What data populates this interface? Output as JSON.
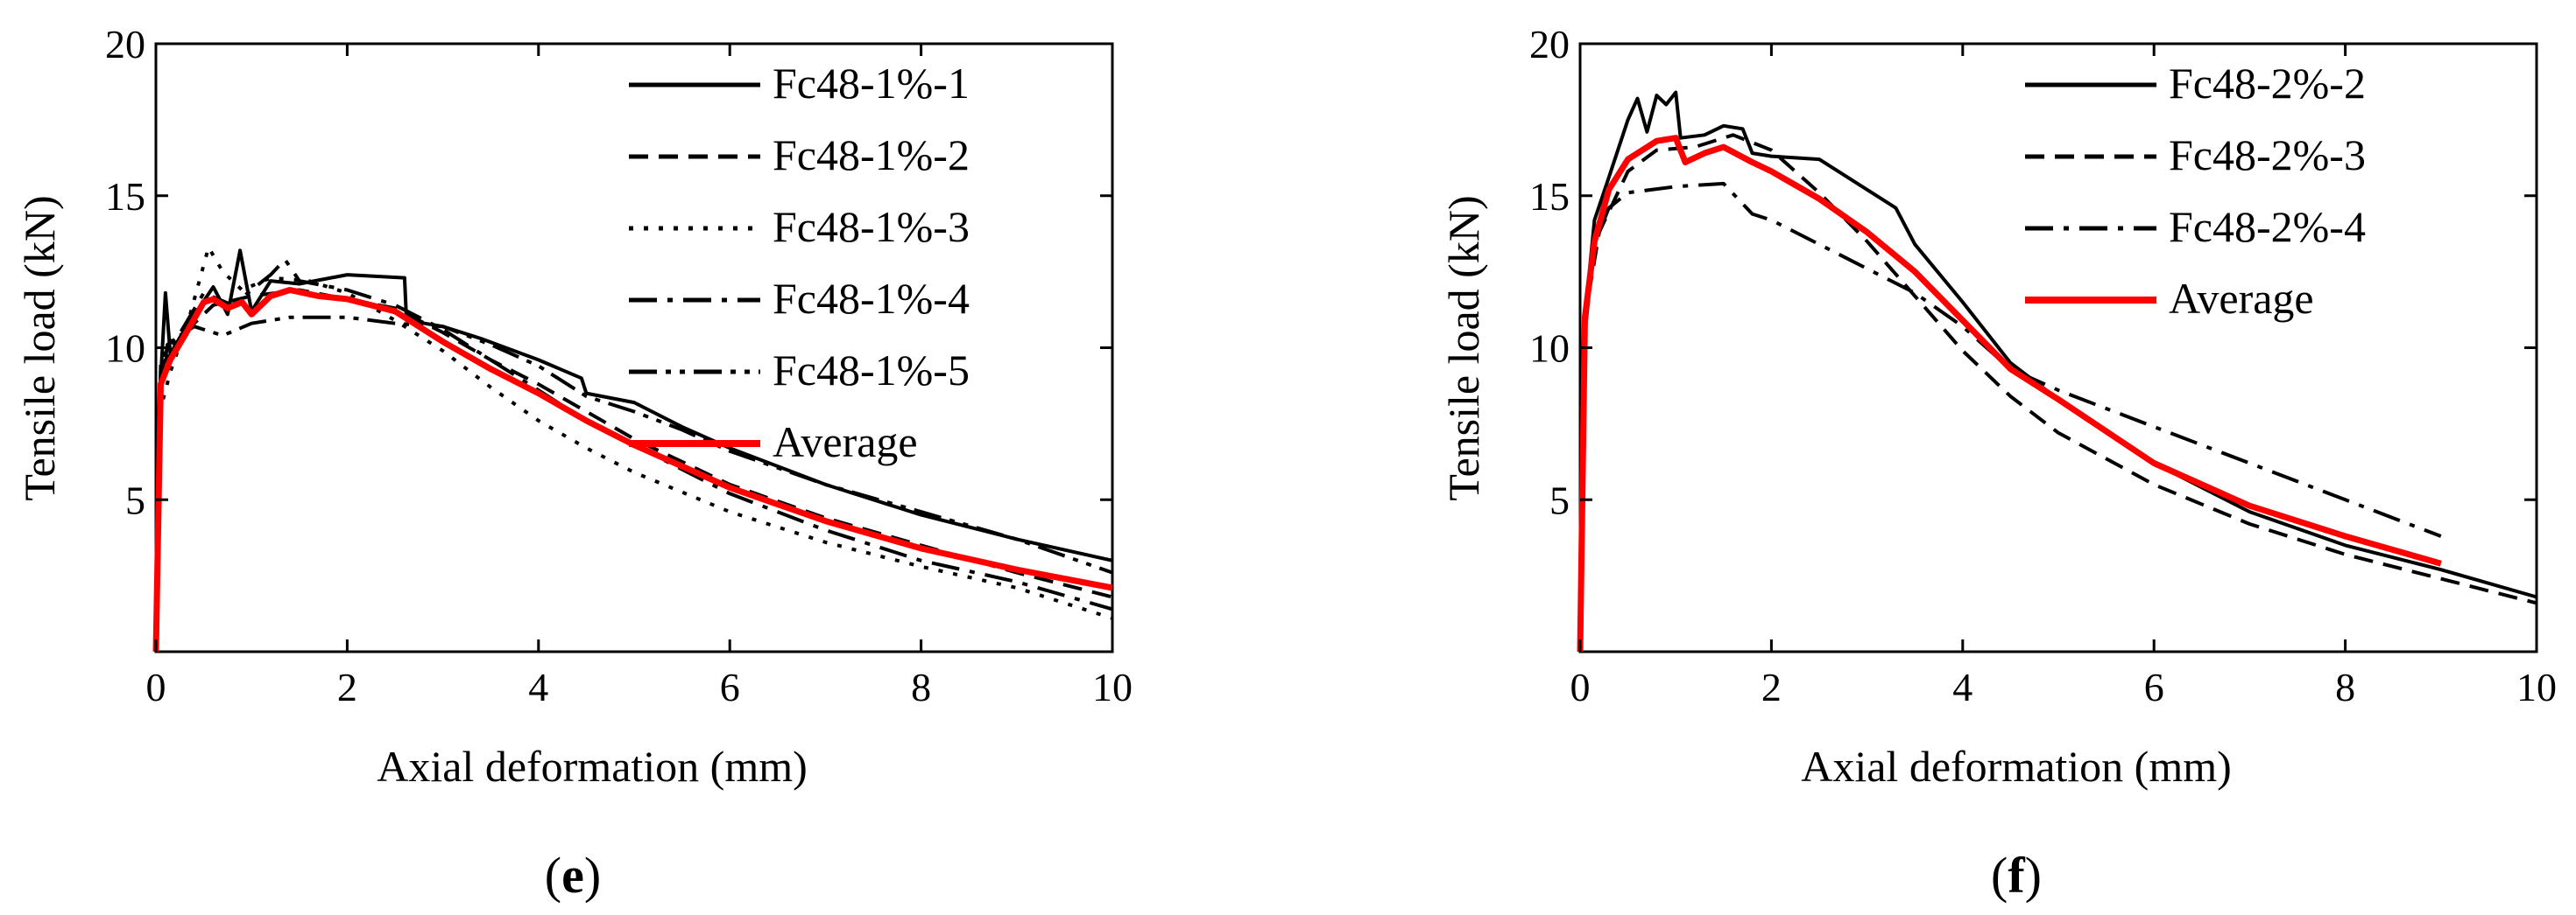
{
  "chart_data": [
    {
      "type": "line",
      "panel_label": {
        "open": "(",
        "letter": "e",
        "close": ")"
      },
      "xlabel": "Axial deformation (mm)",
      "ylabel": "Tensile load (kN)",
      "xlim": [
        0,
        10
      ],
      "ylim": [
        0,
        20
      ],
      "x_ticks": [
        0,
        2,
        4,
        6,
        8,
        10
      ],
      "y_ticks": [
        5,
        10,
        15,
        20
      ],
      "grid": false,
      "legend_position": "top-right",
      "series": [
        {
          "name": "Fc48-1%-1",
          "color": "#000000",
          "dash": "solid",
          "points": [
            [
              0,
              0
            ],
            [
              0.05,
              9
            ],
            [
              0.1,
              11.8
            ],
            [
              0.15,
              9.8
            ],
            [
              0.3,
              10.6
            ],
            [
              0.6,
              12
            ],
            [
              0.75,
              11.1
            ],
            [
              0.88,
              13.2
            ],
            [
              1.0,
              11.2
            ],
            [
              1.2,
              12.2
            ],
            [
              1.5,
              12.1
            ],
            [
              2.0,
              12.4
            ],
            [
              2.6,
              12.3
            ],
            [
              2.62,
              10.9
            ],
            [
              3.0,
              10.7
            ],
            [
              3.4,
              10.3
            ],
            [
              4.0,
              9.6
            ],
            [
              4.45,
              9.0
            ],
            [
              4.5,
              8.5
            ],
            [
              5.0,
              8.2
            ],
            [
              5.5,
              7.4
            ],
            [
              6.0,
              6.7
            ],
            [
              7.0,
              5.5
            ],
            [
              8.0,
              4.5
            ],
            [
              9.0,
              3.7
            ],
            [
              10.0,
              3.0
            ]
          ]
        },
        {
          "name": "Fc48-1%-2",
          "color": "#000000",
          "dash": "dashed",
          "points": [
            [
              0,
              0
            ],
            [
              0.05,
              8.5
            ],
            [
              0.12,
              10.1
            ],
            [
              0.3,
              10.5
            ],
            [
              0.6,
              11.4
            ],
            [
              1.0,
              11.7
            ],
            [
              1.5,
              11.9
            ],
            [
              2.0,
              11.6
            ],
            [
              2.5,
              11.3
            ],
            [
              3.0,
              10.5
            ],
            [
              3.5,
              9.6
            ],
            [
              4.0,
              8.8
            ],
            [
              4.5,
              7.9
            ],
            [
              5.0,
              7.0
            ],
            [
              6.0,
              5.5
            ],
            [
              7.0,
              4.4
            ],
            [
              8.0,
              3.5
            ],
            [
              9.0,
              2.6
            ],
            [
              10.0,
              1.8
            ]
          ]
        },
        {
          "name": "Fc48-1%-3",
          "color": "#000000",
          "dash": "dotted",
          "points": [
            [
              0,
              0
            ],
            [
              0.05,
              8
            ],
            [
              0.15,
              9.2
            ],
            [
              0.35,
              11
            ],
            [
              0.55,
              13.3
            ],
            [
              0.7,
              12.5
            ],
            [
              0.9,
              11.9
            ],
            [
              1.2,
              12.3
            ],
            [
              1.6,
              12.2
            ],
            [
              2.0,
              11.8
            ],
            [
              2.5,
              10.9
            ],
            [
              3.0,
              9.9
            ],
            [
              3.5,
              8.7
            ],
            [
              4.0,
              7.6
            ],
            [
              4.5,
              6.7
            ],
            [
              5.0,
              5.9
            ],
            [
              6.0,
              4.6
            ],
            [
              7.0,
              3.6
            ],
            [
              8.0,
              2.8
            ],
            [
              9.0,
              2.1
            ],
            [
              10.0,
              1.1
            ]
          ]
        },
        {
          "name": "Fc48-1%-4",
          "color": "#000000",
          "dash": "dashdot",
          "points": [
            [
              0,
              0
            ],
            [
              0.05,
              9.3
            ],
            [
              0.2,
              10.2
            ],
            [
              0.5,
              11.8
            ],
            [
              0.8,
              11.4
            ],
            [
              1.2,
              12.4
            ],
            [
              1.35,
              12.9
            ],
            [
              1.5,
              12.2
            ],
            [
              2.0,
              11.9
            ],
            [
              2.5,
              11.4
            ],
            [
              3.0,
              10.6
            ],
            [
              3.5,
              9.6
            ],
            [
              4.0,
              8.6
            ],
            [
              4.5,
              7.6
            ],
            [
              5.0,
              6.8
            ],
            [
              6.0,
              5.2
            ],
            [
              7.0,
              4.0
            ],
            [
              8.0,
              3.0
            ],
            [
              9.0,
              2.3
            ],
            [
              10.0,
              1.4
            ]
          ]
        },
        {
          "name": "Fc48-1%-5",
          "color": "#000000",
          "dash": "dashdotdot",
          "points": [
            [
              0,
              0
            ],
            [
              0.05,
              9.5
            ],
            [
              0.15,
              10.2
            ],
            [
              0.4,
              10.7
            ],
            [
              0.7,
              10.4
            ],
            [
              1.0,
              10.8
            ],
            [
              1.4,
              11.0
            ],
            [
              2.0,
              11.0
            ],
            [
              2.5,
              10.8
            ],
            [
              3.0,
              10.7
            ],
            [
              3.5,
              10.1
            ],
            [
              4.0,
              9.4
            ],
            [
              4.5,
              8.4
            ],
            [
              5.0,
              7.9
            ],
            [
              5.5,
              7.3
            ],
            [
              6.0,
              6.6
            ],
            [
              7.0,
              5.5
            ],
            [
              8.0,
              4.6
            ],
            [
              9.0,
              3.7
            ],
            [
              10.0,
              2.6
            ]
          ]
        },
        {
          "name": "Average",
          "color": "#ff0000",
          "dash": "solid",
          "points": [
            [
              0,
              0
            ],
            [
              0.05,
              8.8
            ],
            [
              0.15,
              9.6
            ],
            [
              0.3,
              10.4
            ],
            [
              0.5,
              11.5
            ],
            [
              0.6,
              11.6
            ],
            [
              0.75,
              11.3
            ],
            [
              0.9,
              11.5
            ],
            [
              1.0,
              11.1
            ],
            [
              1.2,
              11.7
            ],
            [
              1.4,
              11.9
            ],
            [
              1.7,
              11.7
            ],
            [
              2.0,
              11.6
            ],
            [
              2.5,
              11.2
            ],
            [
              3.0,
              10.2
            ],
            [
              3.5,
              9.3
            ],
            [
              4.0,
              8.5
            ],
            [
              4.5,
              7.6
            ],
            [
              5.0,
              6.8
            ],
            [
              5.5,
              6.1
            ],
            [
              6.0,
              5.4
            ],
            [
              7.0,
              4.3
            ],
            [
              8.0,
              3.4
            ],
            [
              9.0,
              2.7
            ],
            [
              10.0,
              2.1
            ]
          ]
        }
      ]
    },
    {
      "type": "line",
      "panel_label": {
        "open": "(",
        "letter": "f",
        "close": ")"
      },
      "xlabel": "Axial deformation (mm)",
      "ylabel": "Tensile load (kN)",
      "xlim": [
        0,
        10
      ],
      "ylim": [
        0,
        20
      ],
      "x_ticks": [
        0,
        2,
        4,
        6,
        8,
        10
      ],
      "y_ticks": [
        5,
        10,
        15,
        20
      ],
      "grid": false,
      "legend_position": "top-right",
      "series": [
        {
          "name": "Fc48-2%-2",
          "color": "#000000",
          "dash": "solid",
          "points": [
            [
              0,
              0
            ],
            [
              0.05,
              11
            ],
            [
              0.15,
              14.2
            ],
            [
              0.3,
              15.6
            ],
            [
              0.5,
              17.5
            ],
            [
              0.6,
              18.2
            ],
            [
              0.7,
              17.1
            ],
            [
              0.8,
              18.3
            ],
            [
              0.9,
              18.0
            ],
            [
              1.0,
              18.4
            ],
            [
              1.05,
              16.9
            ],
            [
              1.3,
              17.0
            ],
            [
              1.5,
              17.3
            ],
            [
              1.7,
              17.2
            ],
            [
              1.8,
              16.4
            ],
            [
              2.0,
              16.3
            ],
            [
              2.5,
              16.2
            ],
            [
              3.0,
              15.2
            ],
            [
              3.3,
              14.6
            ],
            [
              3.5,
              13.4
            ],
            [
              4.0,
              11.5
            ],
            [
              4.5,
              9.5
            ],
            [
              5.0,
              8.3
            ],
            [
              6.0,
              6.2
            ],
            [
              7.0,
              4.6
            ],
            [
              8.0,
              3.5
            ],
            [
              9.0,
              2.7
            ],
            [
              10.0,
              1.8
            ]
          ]
        },
        {
          "name": "Fc48-2%-3",
          "color": "#000000",
          "dash": "dashed",
          "points": [
            [
              0,
              0
            ],
            [
              0.05,
              11
            ],
            [
              0.2,
              13.8
            ],
            [
              0.5,
              15.8
            ],
            [
              0.8,
              16.5
            ],
            [
              1.2,
              16.6
            ],
            [
              1.6,
              17.0
            ],
            [
              2.0,
              16.5
            ],
            [
              2.5,
              15.1
            ],
            [
              3.0,
              13.5
            ],
            [
              3.5,
              11.7
            ],
            [
              4.0,
              9.9
            ],
            [
              4.5,
              8.4
            ],
            [
              5.0,
              7.2
            ],
            [
              6.0,
              5.5
            ],
            [
              7.0,
              4.2
            ],
            [
              8.0,
              3.2
            ],
            [
              9.0,
              2.4
            ],
            [
              10.0,
              1.6
            ]
          ]
        },
        {
          "name": "Fc48-2%-4",
          "color": "#000000",
          "dash": "dashdot",
          "points": [
            [
              0,
              0
            ],
            [
              0.05,
              10.5
            ],
            [
              0.15,
              13.4
            ],
            [
              0.3,
              14.6
            ],
            [
              0.5,
              15.1
            ],
            [
              1.0,
              15.3
            ],
            [
              1.5,
              15.4
            ],
            [
              1.8,
              14.4
            ],
            [
              2.0,
              14.2
            ],
            [
              2.5,
              13.4
            ],
            [
              3.0,
              12.6
            ],
            [
              3.5,
              11.8
            ],
            [
              4.0,
              10.7
            ],
            [
              4.5,
              9.3
            ],
            [
              5.0,
              8.6
            ],
            [
              6.0,
              7.4
            ],
            [
              7.0,
              6.2
            ],
            [
              8.0,
              5.0
            ],
            [
              9.0,
              3.8
            ]
          ]
        },
        {
          "name": "Average",
          "color": "#ff0000",
          "dash": "solid",
          "points": [
            [
              0,
              0
            ],
            [
              0.05,
              11
            ],
            [
              0.15,
              13.5
            ],
            [
              0.3,
              15.2
            ],
            [
              0.5,
              16.2
            ],
            [
              0.8,
              16.8
            ],
            [
              1.0,
              16.9
            ],
            [
              1.1,
              16.1
            ],
            [
              1.3,
              16.4
            ],
            [
              1.5,
              16.6
            ],
            [
              1.8,
              16.1
            ],
            [
              2.0,
              15.8
            ],
            [
              2.5,
              14.9
            ],
            [
              3.0,
              13.8
            ],
            [
              3.5,
              12.5
            ],
            [
              4.0,
              10.9
            ],
            [
              4.5,
              9.3
            ],
            [
              5.0,
              8.3
            ],
            [
              6.0,
              6.2
            ],
            [
              7.0,
              4.8
            ],
            [
              8.0,
              3.8
            ],
            [
              9.0,
              2.9
            ]
          ]
        }
      ]
    }
  ]
}
